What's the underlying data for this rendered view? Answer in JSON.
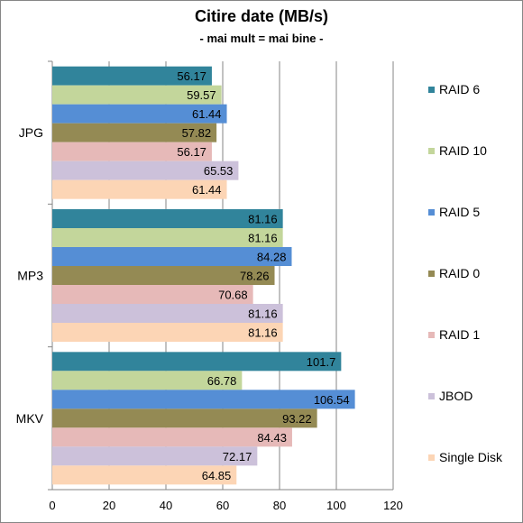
{
  "chart_data": {
    "type": "bar",
    "orientation": "horizontal",
    "title": "Citire date (MB/s)",
    "subtitle": "- mai mult = mai bine -",
    "categories": [
      "JPG",
      "MP3",
      "MKV"
    ],
    "xlim": [
      0,
      120
    ],
    "xticks": [
      0,
      20,
      40,
      60,
      80,
      100,
      120
    ],
    "grid": "vertical",
    "legend_position": "right",
    "series": [
      {
        "name": "RAID 6",
        "color": "#31849B",
        "values": [
          56.17,
          81.16,
          101.7
        ],
        "labels": [
          "56.17",
          "81.16",
          "101.7"
        ]
      },
      {
        "name": "RAID 10",
        "color": "#C3D69B",
        "values": [
          59.57,
          81.16,
          66.78
        ],
        "labels": [
          "59.57",
          "81.16",
          "66.78"
        ]
      },
      {
        "name": "RAID 5",
        "color": "#558ED5",
        "values": [
          61.44,
          84.28,
          106.54
        ],
        "labels": [
          "61.44",
          "84.28",
          "106.54"
        ]
      },
      {
        "name": "RAID 0",
        "color": "#948A54",
        "values": [
          57.82,
          78.26,
          93.22
        ],
        "labels": [
          "57.82",
          "78.26",
          "93.22"
        ]
      },
      {
        "name": "RAID 1",
        "color": "#E6B9B8",
        "values": [
          56.17,
          70.68,
          84.43
        ],
        "labels": [
          "56.17",
          "70.68",
          "84.43"
        ]
      },
      {
        "name": "JBOD",
        "color": "#CCC1DA",
        "values": [
          65.53,
          81.16,
          72.17
        ],
        "labels": [
          "65.53",
          "81.16",
          "72.17"
        ]
      },
      {
        "name": "Single Disk",
        "color": "#FCD5B5",
        "values": [
          61.44,
          81.16,
          64.85
        ],
        "labels": [
          "61.44",
          "81.16",
          "64.85"
        ]
      }
    ]
  }
}
